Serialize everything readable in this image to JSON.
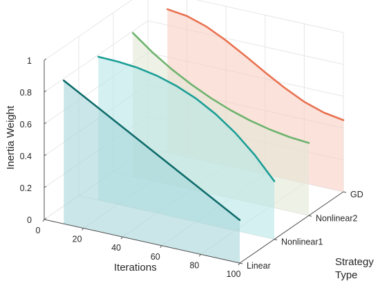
{
  "chart_data": {
    "type": "line",
    "title": "",
    "xlabel": "Iterations",
    "ylabel": "Strategy Type",
    "zlabel": "Inertia Weight",
    "xlim": [
      0,
      100
    ],
    "zlim": [
      0,
      1
    ],
    "x_ticks": [
      "0",
      "20",
      "40",
      "60",
      "80",
      "100"
    ],
    "z_ticks": [
      "0",
      "0.2",
      "0.4",
      "0.6",
      "0.8",
      "1"
    ],
    "categories": [
      "Linear",
      "Nonlinear1",
      "Nonlinear2",
      "GD"
    ],
    "series": [
      {
        "name": "Linear",
        "color": "#0e6b6b",
        "fill": "#a7d6d8",
        "x": [
          10,
          100
        ],
        "values": [
          0.9,
          0.27
        ]
      },
      {
        "name": "Nonlinear1",
        "color": "#1a9e96",
        "fill": "#b8e6e6",
        "x": [
          10,
          20,
          30,
          40,
          50,
          60,
          70,
          80,
          90,
          100
        ],
        "values": [
          0.9,
          0.897,
          0.886,
          0.863,
          0.826,
          0.774,
          0.704,
          0.614,
          0.502,
          0.365
        ]
      },
      {
        "name": "Nonlinear2",
        "color": "#6db36d",
        "fill": "#e3e8d6",
        "x": [
          10,
          20,
          30,
          40,
          50,
          60,
          70,
          80,
          90,
          100
        ],
        "values": [
          0.9,
          0.806,
          0.726,
          0.658,
          0.6,
          0.552,
          0.514,
          0.486,
          0.466,
          0.456
        ]
      },
      {
        "name": "GD",
        "color": "#e8714f",
        "fill": "#f8cfc3",
        "x": [
          10,
          20,
          30,
          40,
          50,
          60,
          70,
          80,
          90,
          100
        ],
        "values": [
          0.9,
          0.885,
          0.845,
          0.785,
          0.715,
          0.64,
          0.57,
          0.51,
          0.47,
          0.45
        ]
      }
    ],
    "grid": true,
    "legend": "none"
  }
}
